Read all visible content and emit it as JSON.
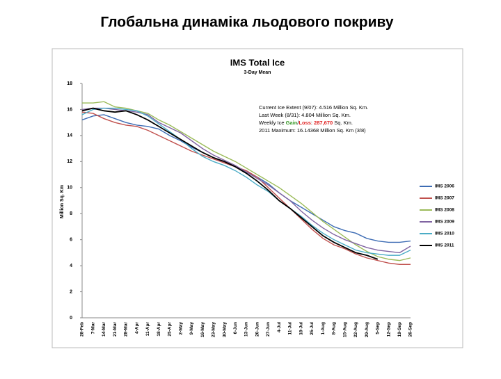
{
  "page_title": "Глобальна динаміка льодового покриву",
  "chart_data": {
    "type": "line",
    "title": "IMS Total Ice",
    "subtitle": "3-Day Mean",
    "y_label": "Million Sq. Km",
    "annotation": {
      "lines": [
        "Current Ice Extent (9/07): 4.516 Million Sq. Km.",
        "Last Week (8/31): 4.804 Million Sq. Km."
      ],
      "weekly": [
        {
          "text": "Weekly Ice ",
          "color": "#000000"
        },
        {
          "text": "Gain",
          "color": "#3a9a2a"
        },
        {
          "text": "/",
          "color": "#000000"
        },
        {
          "text": "Loss",
          "color": "#e02020"
        },
        {
          "text": ": ",
          "color": "#000000"
        },
        {
          "text": "287,670",
          "color": "#e02020"
        },
        {
          "text": " Sq. Km.",
          "color": "#000000"
        }
      ],
      "maximum": "2011 Maximum: 16.14368 Million Sq. Km (3/8)"
    },
    "categories": [
      "28-Feb",
      "7-Mar",
      "14-Mar",
      "21-Mar",
      "28-Mar",
      "4-Apr",
      "11-Apr",
      "18-Apr",
      "25-Apr",
      "2-May",
      "9-May",
      "16-May",
      "23-May",
      "30-May",
      "6-Jun",
      "13-Jun",
      "20-Jun",
      "27-Jun",
      "4-Jul",
      "11-Jul",
      "18-Jul",
      "25-Jul",
      "1-Aug",
      "8-Aug",
      "15-Aug",
      "22-Aug",
      "29-Aug",
      "5-Sep",
      "12-Sep",
      "19-Sep",
      "26-Sep"
    ],
    "series": [
      {
        "name": "IMS 2006",
        "color": "#3d6cb4",
        "values": [
          15.2,
          15.5,
          15.6,
          15.3,
          15.0,
          14.8,
          14.7,
          14.5,
          14.0,
          13.6,
          13.1,
          12.7,
          12.3,
          11.9,
          11.6,
          11.2,
          10.8,
          10.3,
          9.6,
          9.0,
          8.5,
          8.0,
          7.5,
          7.0,
          6.7,
          6.5,
          6.1,
          5.9,
          5.8,
          5.8,
          5.9
        ]
      },
      {
        "name": "IMS 2007",
        "color": "#c0504d",
        "values": [
          15.8,
          15.7,
          15.3,
          15.0,
          14.8,
          14.7,
          14.4,
          14.0,
          13.6,
          13.2,
          12.8,
          12.5,
          12.2,
          11.9,
          11.6,
          11.3,
          10.8,
          10.0,
          9.2,
          8.4,
          7.6,
          6.8,
          6.1,
          5.6,
          5.3,
          4.9,
          4.6,
          4.4,
          4.2,
          4.1,
          4.1
        ]
      },
      {
        "name": "IMS 2008",
        "color": "#9bbb59",
        "values": [
          16.5,
          16.5,
          16.6,
          16.2,
          16.1,
          15.9,
          15.7,
          15.2,
          14.8,
          14.3,
          13.8,
          13.3,
          12.8,
          12.4,
          12.0,
          11.5,
          11.0,
          10.5,
          10.0,
          9.4,
          8.8,
          8.1,
          7.4,
          6.8,
          6.2,
          5.6,
          5.1,
          4.7,
          4.5,
          4.4,
          4.6
        ]
      },
      {
        "name": "IMS 2009",
        "color": "#8064a2",
        "values": [
          16.0,
          16.1,
          16.1,
          16.0,
          15.9,
          15.8,
          15.6,
          15.0,
          14.6,
          14.2,
          13.6,
          13.0,
          12.5,
          12.1,
          11.7,
          11.2,
          10.7,
          10.2,
          9.6,
          9.0,
          8.2,
          7.5,
          6.9,
          6.4,
          6.0,
          5.7,
          5.4,
          5.2,
          5.1,
          5.0,
          5.5
        ]
      },
      {
        "name": "IMS 2010",
        "color": "#4bacc6",
        "values": [
          15.6,
          16.0,
          16.1,
          16.1,
          16.0,
          15.9,
          15.5,
          14.9,
          14.3,
          13.7,
          13.0,
          12.4,
          12.0,
          11.7,
          11.3,
          10.8,
          10.2,
          9.7,
          9.0,
          8.4,
          7.8,
          7.1,
          6.5,
          6.0,
          5.6,
          5.2,
          5.0,
          4.9,
          4.8,
          4.8,
          5.2
        ]
      },
      {
        "name": "IMS 2011",
        "color": "#000000",
        "values": [
          15.9,
          16.1,
          15.9,
          15.8,
          15.9,
          15.6,
          15.2,
          14.7,
          14.2,
          13.7,
          13.2,
          12.7,
          12.3,
          12.0,
          11.6,
          11.1,
          10.5,
          9.8,
          9.0,
          8.4,
          7.7,
          7.0,
          6.3,
          5.8,
          5.4,
          5.0,
          4.8,
          4.5,
          null,
          null,
          null
        ]
      }
    ],
    "ylim": [
      0,
      18
    ],
    "yticks": [
      0,
      2,
      4,
      6,
      8,
      10,
      12,
      14,
      16,
      18
    ],
    "grid": false,
    "legend": "right"
  }
}
